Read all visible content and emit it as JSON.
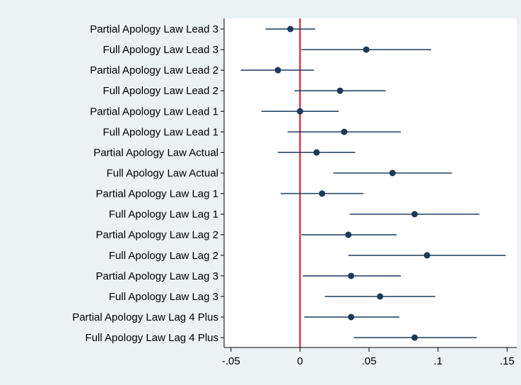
{
  "chart_data": {
    "type": "scatter",
    "subtype": "coefficient-plot",
    "title": "",
    "xlabel": "",
    "ylabel": "",
    "xlim": [
      -0.055,
      0.157
    ],
    "xticks": [
      {
        "value": -0.05,
        "label": "-.05"
      },
      {
        "value": 0,
        "label": "0"
      },
      {
        "value": 0.05,
        "label": ".05"
      },
      {
        "value": 0.1,
        "label": ".1"
      },
      {
        "value": 0.15,
        "label": ".15"
      }
    ],
    "reference_line": {
      "x": 0,
      "color": "#d0102a"
    },
    "grid": false,
    "legend": "none",
    "colors": {
      "background": "#eaf2f3",
      "plot_region": "#ffffff",
      "marker": "#1b3a5c",
      "ci_line": "#1b3a5c",
      "axis": "#000000"
    },
    "categories": [
      "Partial Apology Law Lead 3",
      "Full Apology Law Lead 3",
      "Partial Apology Law Lead 2",
      "Full Apology Law Lead 2",
      "Partial Apology Law Lead 1",
      "Full Apology Law Lead 1",
      "Partial Apology Law Actual",
      "Full Apology Law Actual",
      "Partial Apology Law Lag 1",
      "Full Apology Law Lag 1",
      "Partial Apology Law Lag 2",
      "Full Apology Law Lag 2",
      "Partial Apology Law Lag 3",
      "Full Apology Law Lag 3",
      "Partial Apology Law Lag 4 Plus",
      "Full Apology Law Lag 4 Plus"
    ],
    "estimates": [
      -0.007,
      0.048,
      -0.016,
      0.029,
      0.0,
      0.032,
      0.012,
      0.067,
      0.016,
      0.083,
      0.035,
      0.092,
      0.037,
      0.058,
      0.037,
      0.083
    ],
    "ci_low": [
      -0.025,
      0.001,
      -0.043,
      -0.004,
      -0.028,
      -0.009,
      -0.016,
      0.024,
      -0.014,
      0.036,
      0.001,
      0.035,
      0.002,
      0.018,
      0.003,
      0.039
    ],
    "ci_high": [
      0.011,
      0.095,
      0.01,
      0.062,
      0.028,
      0.073,
      0.04,
      0.11,
      0.046,
      0.13,
      0.07,
      0.149,
      0.073,
      0.098,
      0.072,
      0.128
    ]
  }
}
